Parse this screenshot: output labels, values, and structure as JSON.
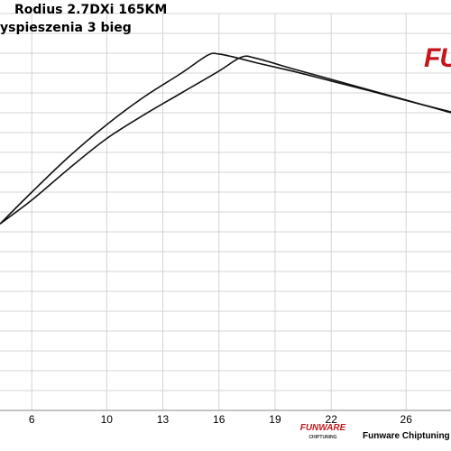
{
  "title": {
    "line1": "Rodius 2.7DXi 165KM",
    "line2": "yspieszenia 3 bieg"
  },
  "logo": {
    "text": "FU"
  },
  "footer": {
    "brand": "FUNWARE",
    "brand_sub": "CHIPTUNING",
    "text": "Funware Chiptuning Łódź"
  },
  "chart_data": {
    "type": "line",
    "title": "Rodius 2.7DXi 165KM",
    "subtitle": "yspieszenia 3 bieg",
    "xlabel": "",
    "ylabel": "",
    "x_ticks": [
      6,
      10,
      13,
      16,
      19,
      22,
      26
    ],
    "xlim": [
      4.3,
      28.4
    ],
    "ylim": [
      0,
      100
    ],
    "grid": true,
    "series": [
      {
        "points": [
          [
            4.3,
            47
          ],
          [
            6,
            53
          ],
          [
            8,
            61
          ],
          [
            10,
            68.5
          ],
          [
            12,
            74.5
          ],
          [
            14,
            80
          ],
          [
            16,
            85.5
          ],
          [
            17.2,
            89
          ],
          [
            18,
            88.7
          ],
          [
            20,
            86
          ],
          [
            22,
            83.4
          ],
          [
            24,
            80.8
          ],
          [
            26,
            78.2
          ],
          [
            28.4,
            75
          ]
        ]
      },
      {
        "points": [
          [
            4.3,
            47
          ],
          [
            6,
            55
          ],
          [
            8,
            64
          ],
          [
            10,
            72
          ],
          [
            12,
            79
          ],
          [
            14,
            85
          ],
          [
            15.4,
            89.5
          ],
          [
            16,
            89.8
          ],
          [
            17,
            88.8
          ],
          [
            18,
            87.6
          ],
          [
            20,
            85.4
          ],
          [
            22,
            83
          ],
          [
            24,
            80.6
          ],
          [
            26,
            78.1
          ],
          [
            28.4,
            75.2
          ]
        ]
      }
    ]
  }
}
